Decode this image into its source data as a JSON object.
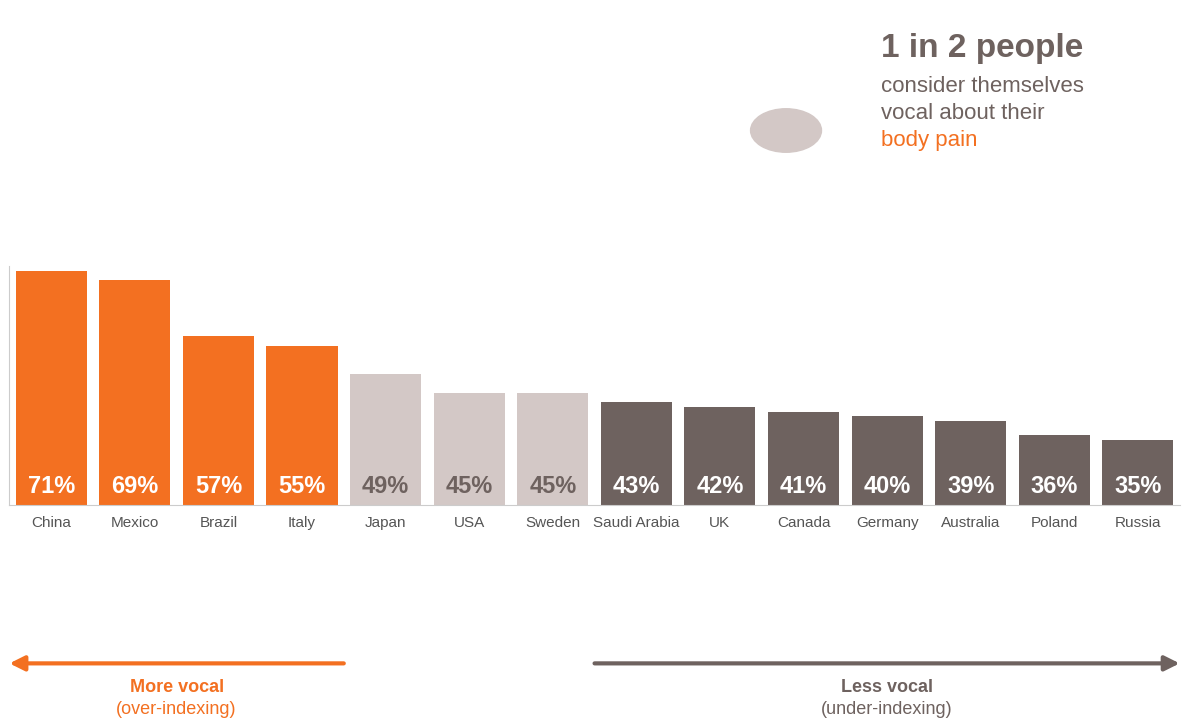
{
  "chart_data": {
    "type": "bar",
    "categories": [
      "China",
      "Mexico",
      "Brazil",
      "Italy",
      "Japan",
      "USA",
      "Sweden",
      "Saudi Arabia",
      "UK",
      "Canada",
      "Germany",
      "Australia",
      "Poland",
      "Russia"
    ],
    "values": [
      71,
      69,
      57,
      55,
      49,
      45,
      45,
      43,
      42,
      41,
      40,
      39,
      36,
      35
    ],
    "value_labels": [
      "71%",
      "69%",
      "57%",
      "55%",
      "49%",
      "45%",
      "45%",
      "43%",
      "42%",
      "41%",
      "40%",
      "39%",
      "36%",
      "35%"
    ],
    "colors": [
      "#f37021",
      "#f37021",
      "#f37021",
      "#f37021",
      "#d3c8c6",
      "#d3c8c6",
      "#d3c8c6",
      "#6e625f",
      "#6e625f",
      "#6e625f",
      "#6e625f",
      "#6e625f",
      "#6e625f",
      "#6e625f"
    ],
    "ylim": [
      21,
      72
    ],
    "data_labels": true,
    "tick_labels": "x",
    "annotations": {
      "headline": [
        "1 in 2 people",
        "consider themselves",
        "vocal about their",
        "body pain"
      ],
      "more_vocal": "More vocal",
      "more_vocal_note": "(over-indexing)",
      "less_vocal": "Less vocal",
      "less_vocal_note": "(under-indexing)"
    }
  }
}
